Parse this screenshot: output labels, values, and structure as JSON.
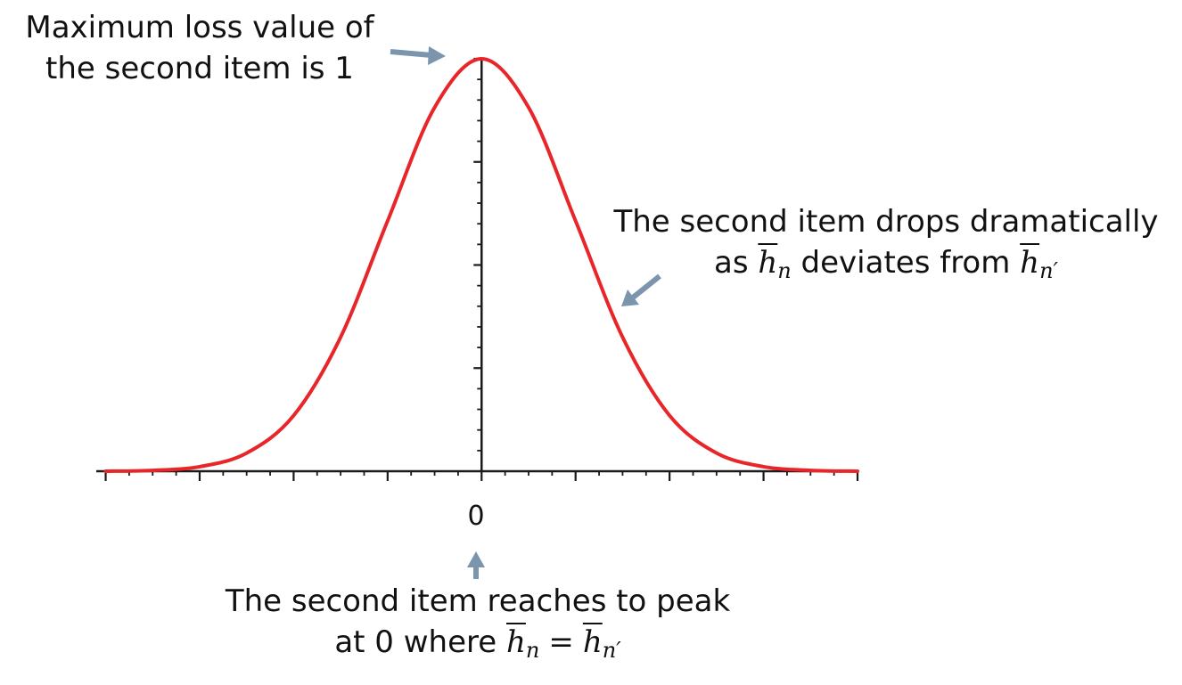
{
  "chart_data": {
    "type": "line",
    "curve": "gaussian",
    "x": [
      -4,
      -3.5,
      -3,
      -2.5,
      -2,
      -1.5,
      -1,
      -0.5,
      0,
      0.5,
      1,
      1.5,
      2,
      2.5,
      3,
      3.5,
      4
    ],
    "values": [
      0.0,
      0.002,
      0.011,
      0.044,
      0.135,
      0.325,
      0.607,
      0.882,
      1.0,
      0.882,
      0.607,
      0.325,
      0.135,
      0.044,
      0.011,
      0.002,
      0.0
    ],
    "xlim": [
      -4.1,
      4.0
    ],
    "ylim": [
      0,
      1
    ],
    "x_tick_labels": [
      "0"
    ],
    "grid": false,
    "series_color": "#e8262a",
    "axis_color": "#1a1a1a",
    "arrow_color": "#7b95ad"
  },
  "annotations": {
    "peak": {
      "line1": "Maximum loss value of",
      "line2": "the second item is 1"
    },
    "drop": {
      "line1": "The second item drops dramatically",
      "line2_prefix": "as ",
      "line2_middle": " deviates from ",
      "h": "h",
      "n": "n",
      "n_prime": "n′"
    },
    "zero": {
      "line1": "The second item reaches to peak",
      "line2_prefix": "at 0 where ",
      "equals": "=",
      "h": "h",
      "n": "n",
      "n_prime": "n′"
    }
  }
}
